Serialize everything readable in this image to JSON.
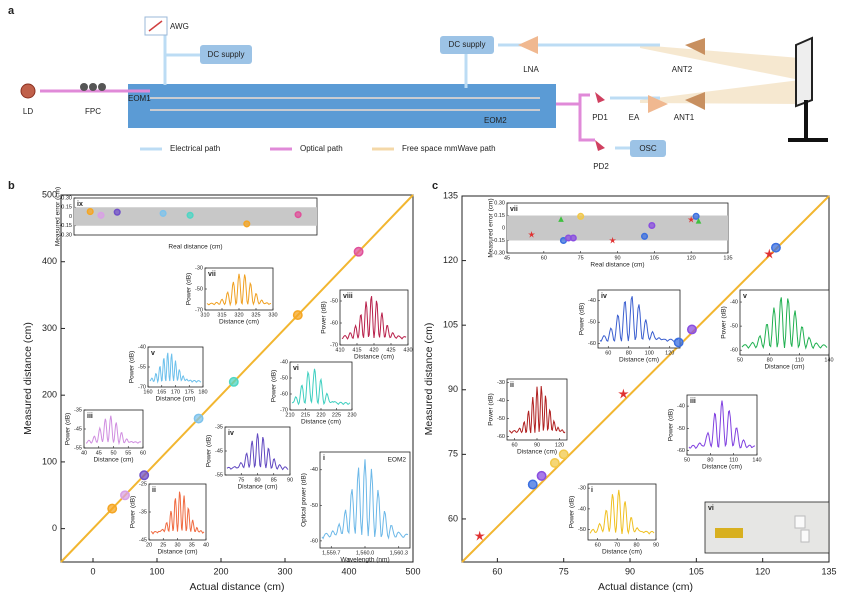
{
  "panel_a": {
    "label": "a",
    "labels": {
      "awg": "AWG",
      "dc1": "DC supply",
      "ld": "LD",
      "fpc": "FPC",
      "eom1": "EOM1",
      "eom2": "EOM2",
      "dc2": "DC supply",
      "lna": "LNA",
      "ant2": "ANT2",
      "ant1": "ANT1",
      "pd1": "PD1",
      "ea": "EA",
      "pd2": "PD2",
      "osc": "OSC"
    },
    "legend": [
      "Electrical path",
      "Optical path",
      "Free space mmWave path"
    ]
  },
  "chart_data": [
    {
      "type": "scatter",
      "label": "b",
      "x_label": "Actual distance (cm)",
      "y_label": "Measured distance (cm)",
      "xlim": [
        -50,
        500
      ],
      "ylim": [
        -50,
        500
      ],
      "xticks": [
        0,
        100,
        200,
        300,
        400,
        500
      ],
      "yticks": [
        0,
        100,
        200,
        300,
        400,
        500
      ],
      "line_color": "#f2b630",
      "x": [
        30,
        50,
        80,
        165,
        220,
        320,
        415
      ],
      "values": [
        30,
        50,
        80,
        165,
        220,
        320,
        415
      ],
      "colors": [
        "#f5a623",
        "#d9a0e6",
        "#7050c8",
        "#7ec3ec",
        "#4fd6c4",
        "#f5a623",
        "#e0509a"
      ],
      "markers": [
        "circle",
        "circle",
        "circle",
        "circle",
        "circle",
        "circle",
        "circle"
      ],
      "insets": [
        {
          "type": "scatter",
          "label": "ix",
          "x_label": "Real distance (cm)",
          "y_label": "Measured error (cm)",
          "xlim": [
            0,
            450
          ],
          "ylim": [
            -0.3,
            0.3
          ],
          "yticks": [
            {
              "value": -0.3,
              "label": "-0.30"
            },
            -0.15,
            0,
            0.15,
            {
              "value": 0.3,
              "label": "0.30"
            }
          ],
          "band": [
            -0.15,
            0.15
          ],
          "x": [
            30,
            50,
            80,
            165,
            215,
            320,
            415
          ],
          "values": [
            0.08,
            0.02,
            0.07,
            0.05,
            0.02,
            -0.12,
            0.03
          ],
          "colors": [
            "#f5a623",
            "#d9a0e6",
            "#7050c8",
            "#7ec3ec",
            "#4fd6c4",
            "#f5a623",
            "#e0509a"
          ],
          "markers": [
            "circle",
            "circle",
            "circle",
            "circle",
            "circle",
            "circle",
            "circle"
          ]
        },
        {
          "type": "line",
          "label": "vii",
          "x_label": "Distance (cm)",
          "y_label": "Power (dB)",
          "xlim": [
            310,
            330
          ],
          "ylim": [
            -70,
            -30
          ],
          "xticks": [
            310,
            315,
            320,
            325,
            330
          ],
          "yticks": [
            -30,
            -50,
            -70
          ],
          "color": "#f0a020"
        },
        {
          "type": "line",
          "label": "viii",
          "x_label": "Distance (cm)",
          "y_label": "Power (dB)",
          "xlim": [
            410,
            430
          ],
          "ylim": [
            -70,
            -45
          ],
          "xticks": [
            410,
            415,
            420,
            425,
            430
          ],
          "yticks": [
            -50,
            -60,
            -70
          ],
          "color": "#b8204a"
        },
        {
          "type": "line",
          "label": "v",
          "x_label": "Distance (cm)",
          "y_label": "Power (dB)",
          "xlim": [
            160,
            180
          ],
          "ylim": [
            -70,
            -40
          ],
          "xticks": [
            160,
            165,
            170,
            175,
            180
          ],
          "yticks": [
            -40,
            -55,
            -70
          ],
          "color": "#6cc0ec"
        },
        {
          "type": "line",
          "label": "vi",
          "x_label": "Distance (cm)",
          "y_label": "Power (dB)",
          "xlim": [
            210,
            230
          ],
          "ylim": [
            -70,
            -40
          ],
          "xticks": [
            210,
            215,
            220,
            225,
            230
          ],
          "yticks": [
            -40,
            -50,
            -60,
            -70
          ],
          "color": "#3ecfc0"
        },
        {
          "type": "line",
          "label": "iii",
          "x_label": "Distance (cm)",
          "y_label": "Power (dB)",
          "xlim": [
            40,
            60
          ],
          "ylim": [
            -55,
            -35
          ],
          "xticks": [
            40,
            45,
            50,
            55,
            60
          ],
          "yticks": [
            -35,
            -45,
            -55
          ],
          "color": "#d08ee0"
        },
        {
          "type": "line",
          "label": "iv",
          "x_label": "Distance (cm)",
          "y_label": "Power (dB)",
          "xlim": [
            70,
            90
          ],
          "ylim": [
            -55,
            -35
          ],
          "xticks": [
            75,
            80,
            85,
            90
          ],
          "yticks": [
            -35,
            -45,
            -55
          ],
          "color": "#6048c0"
        },
        {
          "type": "line",
          "label": "ii",
          "x_label": "Distance (cm)",
          "y_label": "Power (dB)",
          "xlim": [
            20,
            40
          ],
          "ylim": [
            -45,
            -25
          ],
          "xticks": [
            20,
            25,
            30,
            35,
            40
          ],
          "yticks": [
            -25,
            -35,
            -45
          ],
          "color": "#f06a40"
        },
        {
          "type": "line",
          "label": "i",
          "x_label": "Wavelength (nm)",
          "y_label": "Optical power (dB)",
          "annotation": "EOM2",
          "xlim": [
            1559.6,
            1560.4
          ],
          "xticks": [
            {
              "value": 1559.7,
              "label": "1,559.7"
            },
            {
              "value": 1560.0,
              "label": "1,560.0"
            },
            {
              "value": 1560.3,
              "label": "1,560.3"
            }
          ],
          "ylim": [
            -62,
            -35
          ],
          "yticks": [
            -40,
            -50,
            -60
          ],
          "color": "#6cb8e8"
        }
      ]
    },
    {
      "type": "scatter",
      "label": "c",
      "x_label": "Actual distance (cm)",
      "y_label": "Measured distance (cm)",
      "xlim": [
        52,
        135
      ],
      "ylim": [
        50,
        135
      ],
      "xticks": [
        60,
        75,
        90,
        105,
        120,
        135
      ],
      "yticks": [
        60,
        75,
        90,
        105,
        120,
        135
      ],
      "line_color": "#f2b630",
      "x": [
        56,
        68,
        70,
        73,
        75,
        88.5,
        101,
        104,
        121.5,
        123
      ],
      "values": [
        56,
        68,
        70,
        73,
        75,
        89,
        101,
        104,
        121.5,
        123
      ],
      "colors": [
        "#e03030",
        "#3b6fe0",
        "#8a4ee0",
        "#f2c84a",
        "#f2c84a",
        "#e03030",
        "#3b6fe0",
        "#8a4ee0",
        "#e03030",
        "#3b6fe0"
      ],
      "markers": [
        "star",
        "circle",
        "circle",
        "circle",
        "circle",
        "star",
        "circle",
        "circle",
        "star",
        "circle"
      ],
      "insets": [
        {
          "type": "scatter",
          "label": "vii",
          "x_label": "Real distance (cm)",
          "y_label": "Measured error (cm)",
          "xlim": [
            45,
            135
          ],
          "ylim": [
            -0.3,
            0.3
          ],
          "xticks": [
            45,
            60,
            75,
            90,
            105,
            120,
            135
          ],
          "yticks": [
            {
              "value": -0.3,
              "label": "-0.30"
            },
            -0.15,
            0,
            0.15,
            {
              "value": 0.3,
              "label": "0.30"
            }
          ],
          "band": [
            -0.15,
            0.15
          ],
          "x": [
            55,
            67,
            68,
            70,
            72,
            75,
            88,
            101,
            104,
            120,
            122,
            123
          ],
          "values": [
            -0.08,
            0.1,
            -0.15,
            -0.12,
            -0.12,
            0.14,
            -0.15,
            -0.1,
            0.03,
            0.1,
            0.14,
            0.08
          ],
          "colors": [
            "#e03030",
            "#40c040",
            "#3b6fe0",
            "#8a4ee0",
            "#8a4ee0",
            "#f2c84a",
            "#e03030",
            "#3b6fe0",
            "#8a4ee0",
            "#e03030",
            "#3b6fe0",
            "#40c040"
          ],
          "markers": [
            "star",
            "triangle",
            "circle",
            "circle",
            "circle",
            "circle",
            "star",
            "circle",
            "circle",
            "star",
            "circle",
            "triangle"
          ]
        },
        {
          "type": "line",
          "label": "iv",
          "x_label": "Distance (cm)",
          "y_label": "Power (dB)",
          "xlim": [
            50,
            130
          ],
          "ylim": [
            -62,
            -35
          ],
          "xticks": [
            60,
            80,
            100,
            120
          ],
          "yticks": [
            -40,
            -50,
            -60
          ],
          "color": "#3b5fd0"
        },
        {
          "type": "line",
          "label": "v",
          "x_label": "Distance (cm)",
          "y_label": "Power (dB)",
          "xlim": [
            50,
            140
          ],
          "ylim": [
            -62,
            -35
          ],
          "xticks": [
            50,
            80,
            110,
            140
          ],
          "yticks": [
            -40,
            -50,
            -60
          ],
          "color": "#20b050"
        },
        {
          "type": "line",
          "label": "ii",
          "x_label": "Distance (cm)",
          "y_label": "Power (dB)",
          "xlim": [
            50,
            130
          ],
          "ylim": [
            -62,
            -28
          ],
          "xticks": [
            60,
            90,
            120
          ],
          "yticks": [
            -30,
            -40,
            -50,
            -60
          ],
          "color": "#b02020"
        },
        {
          "type": "line",
          "label": "iii",
          "x_label": "Distance (cm)",
          "y_label": "Power (dB)",
          "xlim": [
            50,
            140
          ],
          "ylim": [
            -62,
            -35
          ],
          "xticks": [
            50,
            80,
            110,
            140
          ],
          "yticks": [
            -40,
            -50,
            -60
          ],
          "color": "#8040e0"
        },
        {
          "type": "line",
          "label": "i",
          "x_label": "Distance (cm)",
          "y_label": "Power (dB)",
          "xlim": [
            55,
            90
          ],
          "ylim": [
            -55,
            -28
          ],
          "xticks": [
            60,
            70,
            80,
            90
          ],
          "yticks": [
            -30,
            -40,
            -50
          ],
          "color": "#f0c020"
        },
        {
          "type": "photo",
          "label": "vi"
        }
      ]
    }
  ]
}
